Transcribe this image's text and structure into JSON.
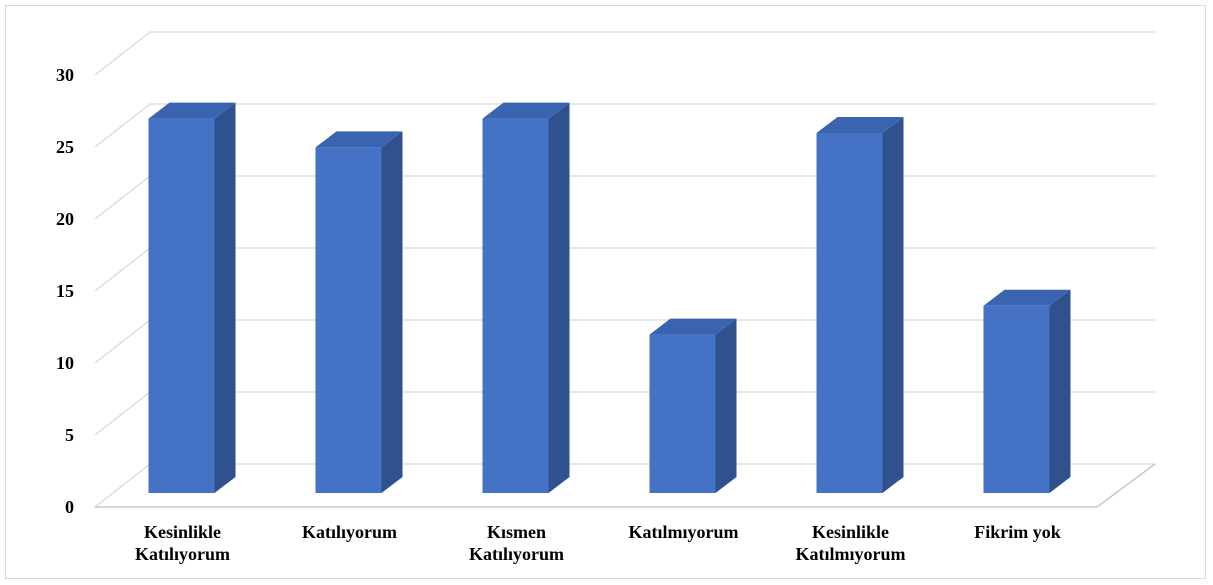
{
  "chart_data": {
    "type": "bar",
    "style": "3d-column",
    "categories": [
      [
        "Kesinlikle",
        "Katılıyorum"
      ],
      [
        "Katılıyorum"
      ],
      [
        "Kısmen",
        "Katılıyorum"
      ],
      [
        "Katılmıyorum"
      ],
      [
        "Kesinlikle",
        "Katılmıyorum"
      ],
      [
        "Fikrim yok"
      ]
    ],
    "values": [
      26,
      24,
      26,
      11,
      25,
      13
    ],
    "ylim": [
      0,
      30
    ],
    "yticks": [
      0,
      5,
      10,
      15,
      20,
      25,
      30
    ],
    "grid": true,
    "legend": "none",
    "colors": {
      "bar_front": "#4472C4",
      "bar_side": "#2F528F",
      "bar_top": "#3A63B0",
      "grid": "#d9d9d9",
      "axis": "#bfbfbf"
    }
  }
}
